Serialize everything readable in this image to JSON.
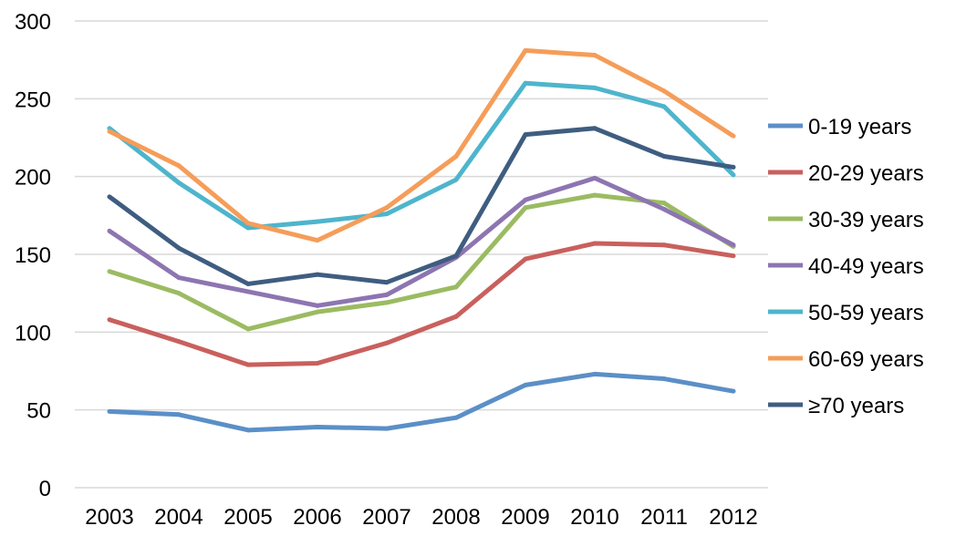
{
  "chart_data": {
    "type": "line",
    "title": "",
    "xlabel": "",
    "ylabel": "",
    "x": [
      "2003",
      "2004",
      "2005",
      "2006",
      "2007",
      "2008",
      "2009",
      "2010",
      "2011",
      "2012"
    ],
    "ylim": [
      0,
      300
    ],
    "yticks": [
      0,
      50,
      100,
      150,
      200,
      250,
      300
    ],
    "grid": "horizontal",
    "legend": "right",
    "series": [
      {
        "name": "0-19 years",
        "color": "#5b8fc7",
        "values": [
          49,
          47,
          37,
          39,
          38,
          45,
          66,
          73,
          70,
          62
        ]
      },
      {
        "name": "20-29 years",
        "color": "#c9605d",
        "values": [
          108,
          94,
          79,
          80,
          93,
          110,
          147,
          157,
          156,
          149
        ]
      },
      {
        "name": "30-39 years",
        "color": "#9bbb62",
        "values": [
          139,
          125,
          102,
          113,
          119,
          129,
          180,
          188,
          183,
          155
        ]
      },
      {
        "name": "40-49 years",
        "color": "#8d75b1",
        "values": [
          165,
          135,
          126,
          117,
          124,
          148,
          185,
          199,
          179,
          156
        ]
      },
      {
        "name": "50-59 years",
        "color": "#4eb5cc",
        "values": [
          231,
          196,
          167,
          171,
          176,
          198,
          260,
          257,
          245,
          201
        ]
      },
      {
        "name": "60-69 years",
        "color": "#f59d59",
        "values": [
          229,
          207,
          170,
          159,
          180,
          213,
          281,
          278,
          255,
          226
        ]
      },
      {
        "name": "≥70 years",
        "color": "#3f5d80",
        "values": [
          187,
          154,
          131,
          137,
          132,
          149,
          227,
          231,
          213,
          206
        ]
      }
    ]
  }
}
